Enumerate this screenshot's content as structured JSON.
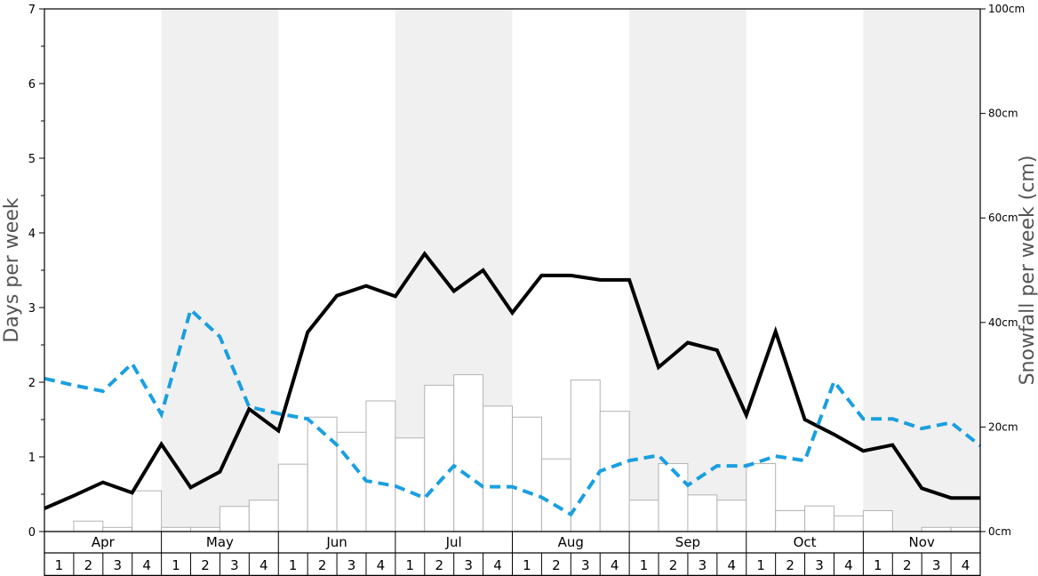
{
  "chart_data": {
    "type": "bar",
    "months": [
      "Apr",
      "May",
      "Jun",
      "Jul",
      "Aug",
      "Sep",
      "Oct",
      "Nov"
    ],
    "weeks": [
      "1",
      "2",
      "3",
      "4"
    ],
    "left_axis": {
      "label": "Days per week",
      "ylim": [
        0,
        7
      ],
      "ticks": [
        "0",
        "1",
        "2",
        "3",
        "4",
        "5",
        "6",
        "7"
      ]
    },
    "right_axis": {
      "label": "Snowfall per week (cm)",
      "ylim": [
        0,
        100
      ],
      "ticks": [
        "0cm",
        "20cm",
        "40cm",
        "60cm",
        "80cm",
        "100cm"
      ]
    },
    "series": [
      {
        "kind": "bar",
        "axis": "right",
        "color": "#ffffff",
        "values": [
          0,
          2.0,
          0.8,
          7.8,
          0.8,
          0.8,
          4.8,
          6.0,
          12.9,
          21.9,
          19.0,
          25.0,
          17.9,
          28.0,
          30.0,
          24.0,
          21.9,
          13.9,
          29.0,
          23.0,
          6.0,
          13.0,
          7.0,
          6.0,
          13.0,
          4.0,
          4.9,
          3.0,
          4.0,
          0,
          0.8,
          0.8
        ]
      },
      {
        "kind": "line",
        "axis": "left",
        "style": "solid",
        "color": "#000000",
        "values": [
          0.31,
          0.48,
          0.66,
          0.52,
          1.17,
          0.59,
          0.8,
          1.64,
          1.35,
          2.67,
          3.16,
          3.29,
          3.15,
          3.72,
          3.22,
          3.5,
          2.93,
          3.43,
          3.43,
          3.37,
          3.37,
          2.2,
          2.53,
          2.43,
          1.56,
          2.68,
          1.5,
          1.3,
          1.08,
          1.16,
          0.58,
          0.45,
          0.45
        ]
      },
      {
        "kind": "line",
        "axis": "left",
        "style": "dashed",
        "color": "#1a9fe0",
        "values": [
          2.05,
          1.96,
          1.88,
          2.25,
          1.57,
          2.97,
          2.61,
          1.67,
          1.58,
          1.51,
          1.16,
          0.68,
          0.61,
          0.45,
          0.88,
          0.6,
          0.6,
          0.46,
          0.23,
          0.81,
          0.95,
          1.02,
          0.62,
          0.88,
          0.88,
          1.01,
          0.95,
          2.01,
          1.51,
          1.51,
          1.38,
          1.46,
          1.15
        ]
      }
    ],
    "shaded_months": [
      "May",
      "Jul",
      "Sep",
      "Nov"
    ],
    "grid": false,
    "legend": "none"
  }
}
